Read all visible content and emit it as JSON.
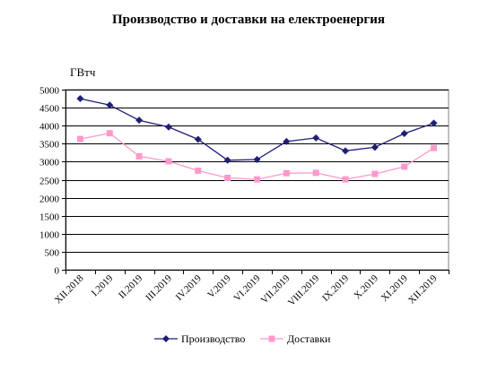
{
  "chart_data": {
    "type": "line",
    "title": "Производство и доставки на електроенергия",
    "unit": "ГВтч",
    "categories": [
      "XII.2018",
      "I.2019",
      "II.2019",
      "III.2019",
      "IV.2019",
      "V.2019",
      "VI.2019",
      "VII.2019",
      "VIII.2019",
      "IX.2019",
      "X.2019",
      "XI.2019",
      "XII.2019"
    ],
    "ylim": [
      0,
      5000
    ],
    "yticks": [
      "0",
      "500",
      "1000",
      "1500",
      "2000",
      "2500",
      "3000",
      "3500",
      "4000",
      "4500",
      "5000"
    ],
    "grid": true,
    "legend_position": "bottom",
    "series": [
      {
        "name": "Производство",
        "color": "#1f1f78",
        "marker": "diamond",
        "values": [
          4750,
          4570,
          4150,
          3960,
          3620,
          3040,
          3060,
          3560,
          3660,
          3300,
          3400,
          3780,
          4070
        ]
      },
      {
        "name": "Доставки",
        "color": "#ff99cc",
        "marker": "square",
        "values": [
          3630,
          3790,
          3150,
          3010,
          2750,
          2550,
          2510,
          2680,
          2690,
          2510,
          2660,
          2860,
          3380
        ]
      }
    ]
  }
}
